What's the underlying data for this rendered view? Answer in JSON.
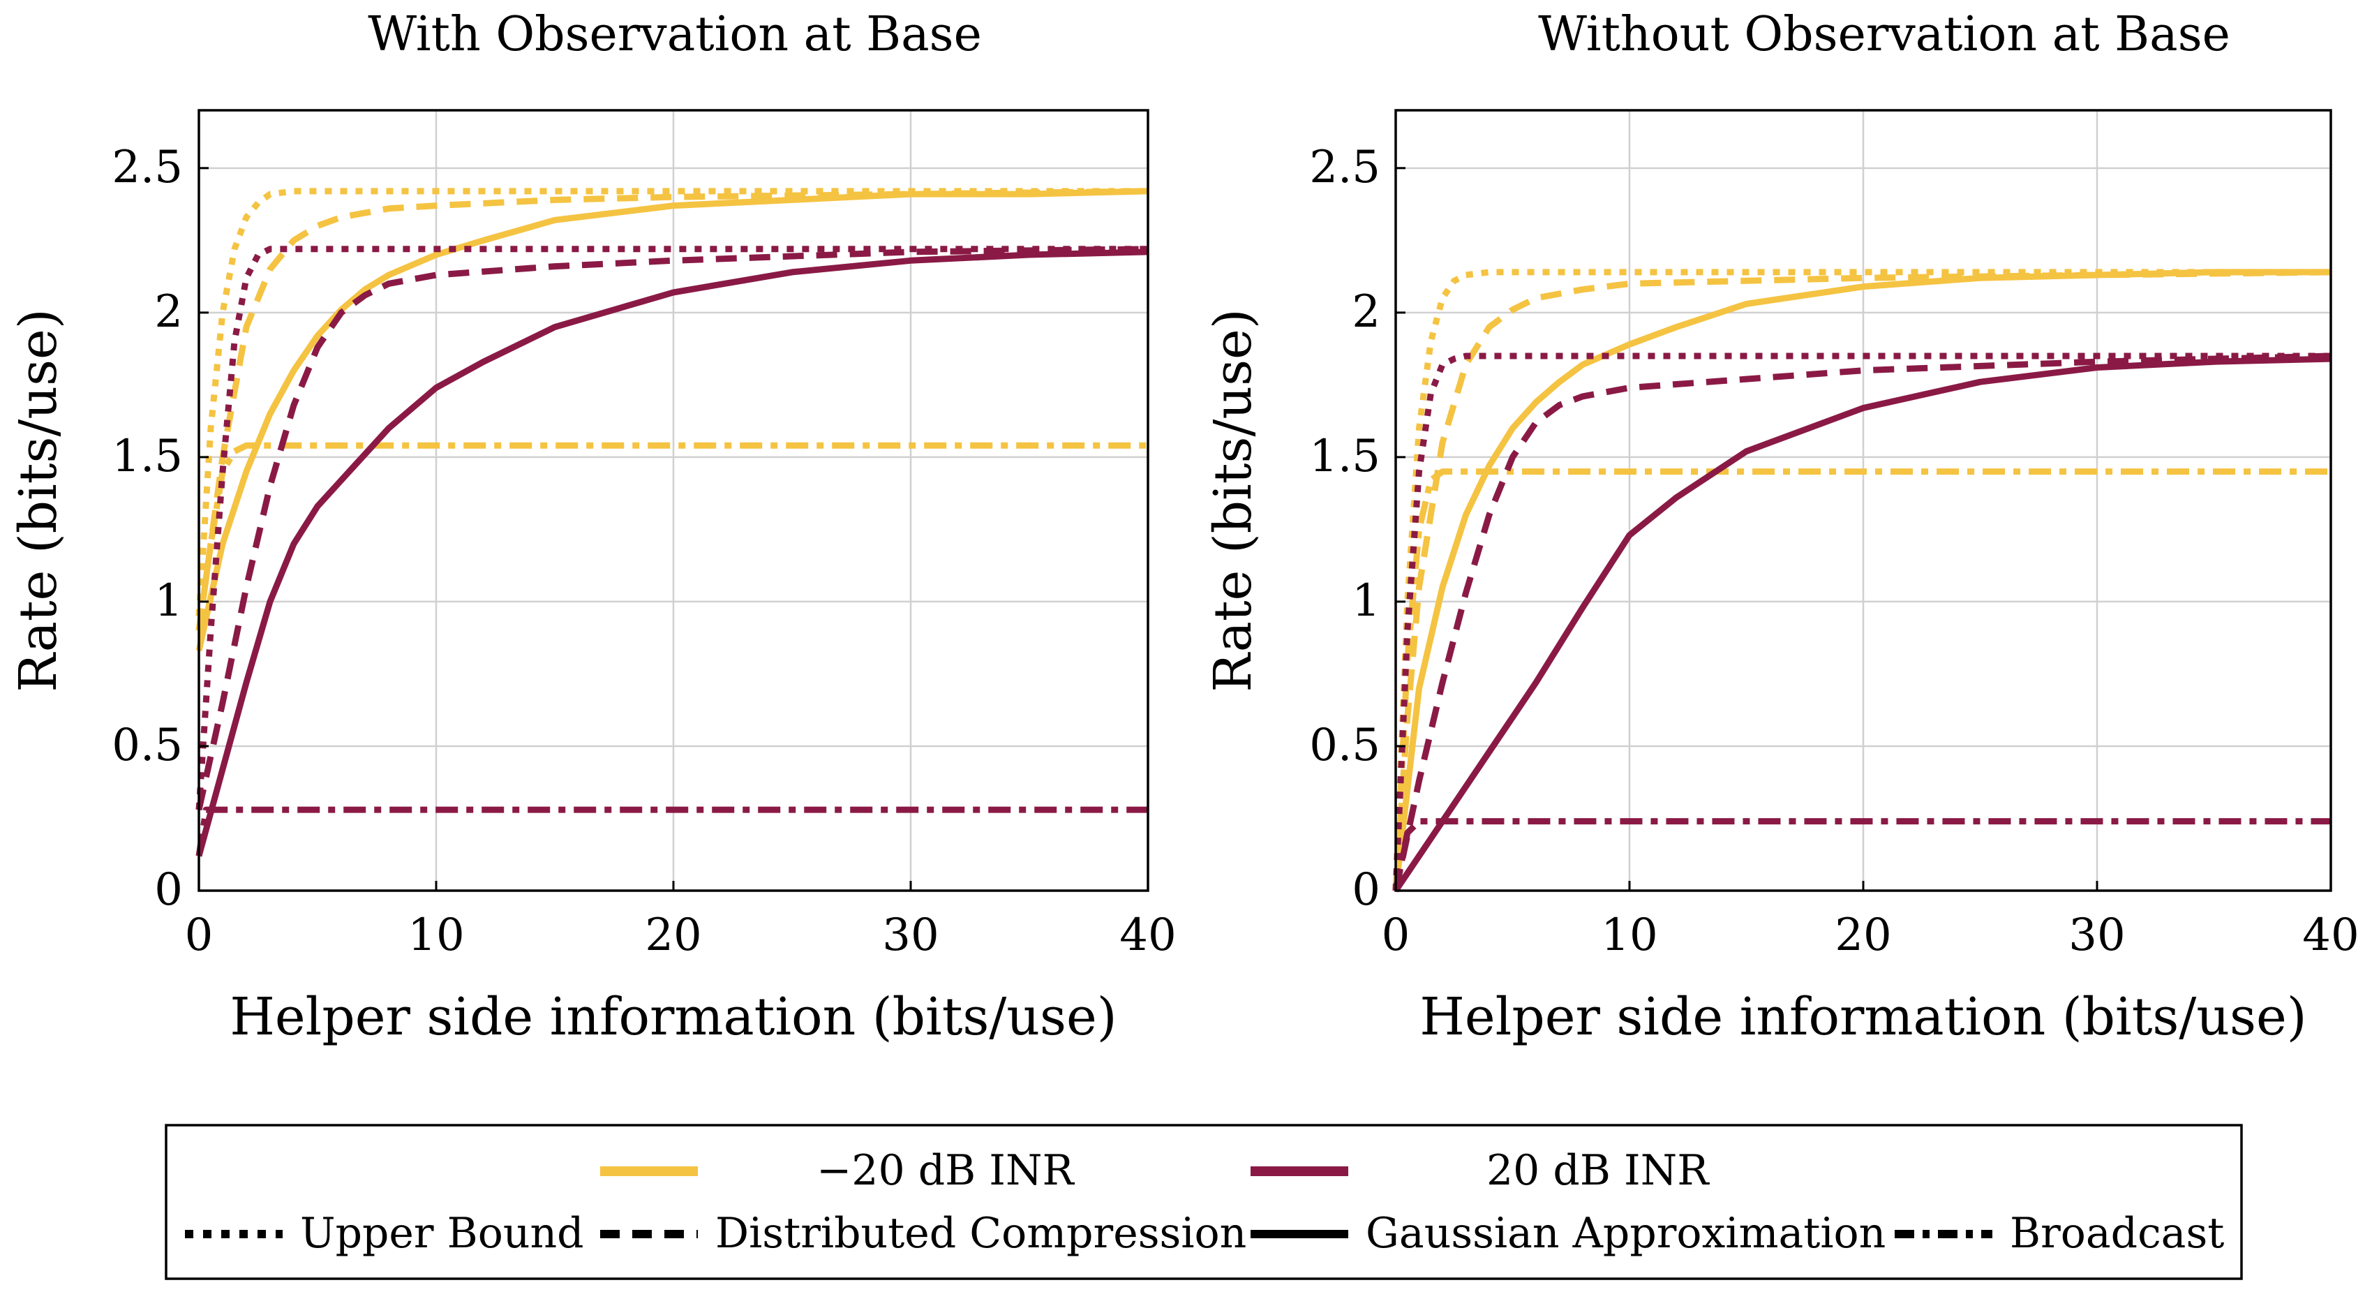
{
  "colors": {
    "low_inr": "#f5c342",
    "high_inr": "#8a1a45",
    "grid": "#d0d0d0",
    "frame": "#000000"
  },
  "legend": {
    "series_entries": [
      {
        "label": "−20 dB INR",
        "color": "#f5c342"
      },
      {
        "label": "20 dB INR",
        "color": "#8a1a45"
      }
    ],
    "style_entries": [
      {
        "label": "Upper Bound",
        "dash": "dotted"
      },
      {
        "label": "Distributed Compression",
        "dash": "dashed"
      },
      {
        "label": "Gaussian Approximation",
        "dash": "solid"
      },
      {
        "label": "Broadcast",
        "dash": "dashdot"
      }
    ]
  },
  "chart_data": [
    {
      "type": "line",
      "title": "With Observation at Base",
      "xlabel": "Helper side information (bits/use)",
      "ylabel": "Rate (bits/use)",
      "xlim": [
        0,
        40
      ],
      "ylim": [
        0,
        2.7
      ],
      "xticks": [
        "0",
        "10",
        "20",
        "30",
        "40"
      ],
      "yticks": [
        "0",
        "0.5",
        "1",
        "1.5",
        "2",
        "2.5"
      ],
      "grid": true,
      "series": [
        {
          "name": "Upper Bound (−20 dB INR)",
          "color": "#f5c342",
          "dash": "dotted",
          "x": [
            0,
            0.5,
            1,
            1.5,
            2,
            2.5,
            3,
            4,
            6,
            10,
            20,
            30,
            40
          ],
          "y": [
            0.95,
            1.6,
            2.0,
            2.22,
            2.33,
            2.38,
            2.41,
            2.42,
            2.42,
            2.42,
            2.42,
            2.42,
            2.42
          ]
        },
        {
          "name": "Distributed Compression (−20 dB INR)",
          "color": "#f5c342",
          "dash": "dashed",
          "x": [
            0,
            0.5,
            1,
            2,
            3,
            4,
            5,
            6,
            8,
            10,
            15,
            20,
            30,
            40
          ],
          "y": [
            0.9,
            1.2,
            1.5,
            1.95,
            2.15,
            2.25,
            2.3,
            2.33,
            2.36,
            2.37,
            2.39,
            2.4,
            2.41,
            2.42
          ]
        },
        {
          "name": "Gaussian Approximation (−20 dB INR)",
          "color": "#f5c342",
          "dash": "solid",
          "x": [
            0,
            1,
            2,
            3,
            4,
            5,
            6,
            7,
            8,
            10,
            12,
            15,
            20,
            25,
            30,
            35,
            40
          ],
          "y": [
            0.83,
            1.2,
            1.45,
            1.65,
            1.8,
            1.92,
            2.01,
            2.08,
            2.13,
            2.2,
            2.25,
            2.32,
            2.37,
            2.39,
            2.41,
            2.41,
            2.42
          ]
        },
        {
          "name": "Broadcast (−20 dB INR)",
          "color": "#f5c342",
          "dash": "dashdot",
          "x": [
            0,
            0.5,
            1,
            1.5,
            2,
            40
          ],
          "y": [
            0.9,
            1.2,
            1.45,
            1.52,
            1.54,
            1.54
          ]
        },
        {
          "name": "Upper Bound (20 dB INR)",
          "color": "#8a1a45",
          "dash": "dotted",
          "x": [
            0,
            0.5,
            1,
            1.5,
            2,
            2.5,
            3,
            4,
            6,
            10,
            20,
            30,
            40
          ],
          "y": [
            0.28,
            0.9,
            1.45,
            1.9,
            2.12,
            2.2,
            2.22,
            2.22,
            2.22,
            2.22,
            2.22,
            2.22,
            2.22
          ]
        },
        {
          "name": "Distributed Compression (20 dB INR)",
          "color": "#8a1a45",
          "dash": "dashed",
          "x": [
            0,
            1,
            2,
            3,
            4,
            5,
            6,
            7,
            8,
            10,
            15,
            20,
            30,
            40
          ],
          "y": [
            0.28,
            0.65,
            1.05,
            1.4,
            1.68,
            1.88,
            2.0,
            2.06,
            2.1,
            2.13,
            2.16,
            2.18,
            2.21,
            2.22
          ]
        },
        {
          "name": "Gaussian Approximation (20 dB INR)",
          "color": "#8a1a45",
          "dash": "solid",
          "x": [
            0,
            1,
            2,
            3,
            4,
            5,
            6,
            8,
            10,
            12,
            15,
            20,
            25,
            30,
            35,
            40
          ],
          "y": [
            0.12,
            0.42,
            0.72,
            1.0,
            1.2,
            1.33,
            1.42,
            1.6,
            1.74,
            1.83,
            1.95,
            2.07,
            2.14,
            2.18,
            2.2,
            2.21
          ]
        },
        {
          "name": "Broadcast (20 dB INR)",
          "color": "#8a1a45",
          "dash": "dashdot",
          "x": [
            0,
            0.3,
            40
          ],
          "y": [
            0.12,
            0.28,
            0.28
          ]
        }
      ]
    },
    {
      "type": "line",
      "title": "Without Observation at Base",
      "xlabel": "Helper side information (bits/use)",
      "ylabel": "Rate (bits/use)",
      "xlim": [
        0,
        40
      ],
      "ylim": [
        0,
        2.7
      ],
      "xticks": [
        "0",
        "10",
        "20",
        "30",
        "40"
      ],
      "yticks": [
        "0",
        "0.5",
        "1",
        "1.5",
        "2",
        "2.5"
      ],
      "grid": true,
      "series": [
        {
          "name": "Upper Bound (−20 dB INR)",
          "color": "#f5c342",
          "dash": "dotted",
          "x": [
            0,
            0.5,
            1,
            1.5,
            2,
            2.5,
            3,
            4,
            6,
            10,
            20,
            30,
            40
          ],
          "y": [
            0.0,
            1.0,
            1.6,
            1.9,
            2.05,
            2.11,
            2.13,
            2.14,
            2.14,
            2.14,
            2.14,
            2.14,
            2.14
          ]
        },
        {
          "name": "Distributed Compression (−20 dB INR)",
          "color": "#f5c342",
          "dash": "dashed",
          "x": [
            0,
            0.5,
            1,
            2,
            3,
            4,
            5,
            6,
            8,
            10,
            15,
            20,
            30,
            40
          ],
          "y": [
            0.0,
            0.6,
            1.05,
            1.55,
            1.82,
            1.95,
            2.01,
            2.05,
            2.08,
            2.1,
            2.11,
            2.12,
            2.13,
            2.14
          ]
        },
        {
          "name": "Gaussian Approximation (−20 dB INR)",
          "color": "#f5c342",
          "dash": "solid",
          "x": [
            0,
            1,
            2,
            3,
            4,
            5,
            6,
            7,
            8,
            10,
            12,
            15,
            20,
            25,
            30,
            35,
            40
          ],
          "y": [
            0.0,
            0.7,
            1.05,
            1.3,
            1.47,
            1.6,
            1.69,
            1.76,
            1.82,
            1.89,
            1.95,
            2.03,
            2.09,
            2.12,
            2.13,
            2.14,
            2.14
          ]
        },
        {
          "name": "Broadcast (−20 dB INR)",
          "color": "#f5c342",
          "dash": "dashdot",
          "x": [
            0,
            0.5,
            1,
            1.5,
            2,
            40
          ],
          "y": [
            0.0,
            0.8,
            1.25,
            1.42,
            1.45,
            1.45
          ]
        },
        {
          "name": "Upper Bound (20 dB INR)",
          "color": "#8a1a45",
          "dash": "dotted",
          "x": [
            0,
            0.5,
            1,
            1.5,
            2,
            2.5,
            3,
            4,
            6,
            10,
            20,
            30,
            40
          ],
          "y": [
            0.0,
            0.9,
            1.45,
            1.72,
            1.82,
            1.84,
            1.85,
            1.85,
            1.85,
            1.85,
            1.85,
            1.85,
            1.85
          ]
        },
        {
          "name": "Distributed Compression (20 dB INR)",
          "color": "#8a1a45",
          "dash": "dashed",
          "x": [
            0,
            1,
            2,
            3,
            4,
            5,
            6,
            7,
            8,
            10,
            15,
            20,
            30,
            40
          ],
          "y": [
            0.0,
            0.38,
            0.72,
            1.03,
            1.3,
            1.5,
            1.62,
            1.68,
            1.71,
            1.74,
            1.77,
            1.8,
            1.83,
            1.85
          ]
        },
        {
          "name": "Gaussian Approximation (20 dB INR)",
          "color": "#8a1a45",
          "dash": "solid",
          "x": [
            0,
            1,
            2,
            3,
            4,
            5,
            6,
            8,
            10,
            12,
            15,
            20,
            25,
            30,
            35,
            40
          ],
          "y": [
            0.0,
            0.12,
            0.24,
            0.36,
            0.48,
            0.6,
            0.72,
            0.98,
            1.23,
            1.36,
            1.52,
            1.67,
            1.76,
            1.81,
            1.83,
            1.84
          ]
        },
        {
          "name": "Broadcast (20 dB INR)",
          "color": "#8a1a45",
          "dash": "dashdot",
          "x": [
            0,
            0.5,
            1,
            40
          ],
          "y": [
            0.0,
            0.2,
            0.24,
            0.24
          ]
        }
      ]
    }
  ]
}
